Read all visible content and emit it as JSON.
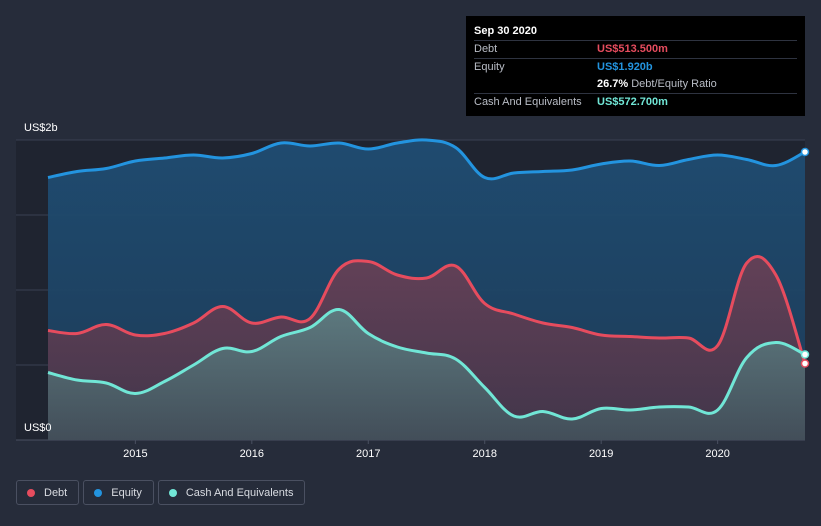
{
  "tooltip": {
    "date": "Sep 30 2020",
    "debt_label": "Debt",
    "debt_value": "US$513.500m",
    "equity_label": "Equity",
    "equity_value": "US$1.920b",
    "ratio_value": "26.7%",
    "ratio_label": "Debt/Equity Ratio",
    "cash_label": "Cash And Equivalents",
    "cash_value": "US$572.700m"
  },
  "colors": {
    "debt": "#e64c5e",
    "equity": "#2394df",
    "cash": "#71e6d6",
    "background": "#262c3a"
  },
  "legend": [
    {
      "key": "debt",
      "label": "Debt"
    },
    {
      "key": "equity",
      "label": "Equity"
    },
    {
      "key": "cash",
      "label": "Cash And Equivalents"
    }
  ],
  "chart_data": {
    "type": "area",
    "title": "",
    "xlabel": "",
    "ylabel": "",
    "y_top_label": "US$2b",
    "y_bottom_label": "US$0",
    "ylim": [
      0,
      2.0
    ],
    "xlim": [
      2014.25,
      2020.75
    ],
    "x_ticks": [
      2015,
      2016,
      2017,
      2018,
      2019,
      2020
    ],
    "x_tick_labels": [
      "2015",
      "2016",
      "2017",
      "2018",
      "2019",
      "2020"
    ],
    "series": [
      {
        "name": "Equity",
        "key": "equity",
        "unit": "US$b",
        "points": [
          [
            2014.25,
            1.75
          ],
          [
            2014.5,
            1.79
          ],
          [
            2014.75,
            1.81
          ],
          [
            2015.0,
            1.86
          ],
          [
            2015.25,
            1.88
          ],
          [
            2015.5,
            1.9
          ],
          [
            2015.75,
            1.88
          ],
          [
            2016.0,
            1.91
          ],
          [
            2016.25,
            1.98
          ],
          [
            2016.5,
            1.96
          ],
          [
            2016.75,
            1.98
          ],
          [
            2017.0,
            1.94
          ],
          [
            2017.25,
            1.98
          ],
          [
            2017.5,
            2.0
          ],
          [
            2017.75,
            1.95
          ],
          [
            2018.0,
            1.75
          ],
          [
            2018.25,
            1.78
          ],
          [
            2018.5,
            1.79
          ],
          [
            2018.75,
            1.8
          ],
          [
            2019.0,
            1.84
          ],
          [
            2019.25,
            1.86
          ],
          [
            2019.5,
            1.83
          ],
          [
            2019.75,
            1.87
          ],
          [
            2020.0,
            1.9
          ],
          [
            2020.25,
            1.87
          ],
          [
            2020.5,
            1.83
          ],
          [
            2020.75,
            1.92
          ]
        ]
      },
      {
        "name": "Debt",
        "key": "debt",
        "unit": "US$b",
        "points": [
          [
            2014.25,
            0.73
          ],
          [
            2014.5,
            0.71
          ],
          [
            2014.75,
            0.77
          ],
          [
            2015.0,
            0.7
          ],
          [
            2015.25,
            0.71
          ],
          [
            2015.5,
            0.78
          ],
          [
            2015.75,
            0.89
          ],
          [
            2016.0,
            0.78
          ],
          [
            2016.25,
            0.82
          ],
          [
            2016.5,
            0.81
          ],
          [
            2016.75,
            1.14
          ],
          [
            2017.0,
            1.19
          ],
          [
            2017.25,
            1.1
          ],
          [
            2017.5,
            1.08
          ],
          [
            2017.75,
            1.16
          ],
          [
            2018.0,
            0.91
          ],
          [
            2018.25,
            0.84
          ],
          [
            2018.5,
            0.78
          ],
          [
            2018.75,
            0.75
          ],
          [
            2019.0,
            0.7
          ],
          [
            2019.25,
            0.69
          ],
          [
            2019.5,
            0.68
          ],
          [
            2019.75,
            0.68
          ],
          [
            2020.0,
            0.63
          ],
          [
            2020.25,
            1.18
          ],
          [
            2020.5,
            1.1
          ],
          [
            2020.75,
            0.51
          ]
        ]
      },
      {
        "name": "Cash And Equivalents",
        "key": "cash",
        "unit": "US$b",
        "points": [
          [
            2014.25,
            0.45
          ],
          [
            2014.5,
            0.4
          ],
          [
            2014.75,
            0.38
          ],
          [
            2015.0,
            0.31
          ],
          [
            2015.25,
            0.39
          ],
          [
            2015.5,
            0.5
          ],
          [
            2015.75,
            0.61
          ],
          [
            2016.0,
            0.59
          ],
          [
            2016.25,
            0.69
          ],
          [
            2016.5,
            0.75
          ],
          [
            2016.75,
            0.87
          ],
          [
            2017.0,
            0.71
          ],
          [
            2017.25,
            0.62
          ],
          [
            2017.5,
            0.58
          ],
          [
            2017.75,
            0.54
          ],
          [
            2018.0,
            0.35
          ],
          [
            2018.25,
            0.16
          ],
          [
            2018.5,
            0.19
          ],
          [
            2018.75,
            0.14
          ],
          [
            2019.0,
            0.21
          ],
          [
            2019.25,
            0.2
          ],
          [
            2019.5,
            0.22
          ],
          [
            2019.75,
            0.22
          ],
          [
            2020.0,
            0.2
          ],
          [
            2020.25,
            0.55
          ],
          [
            2020.5,
            0.65
          ],
          [
            2020.75,
            0.57
          ]
        ]
      }
    ]
  }
}
